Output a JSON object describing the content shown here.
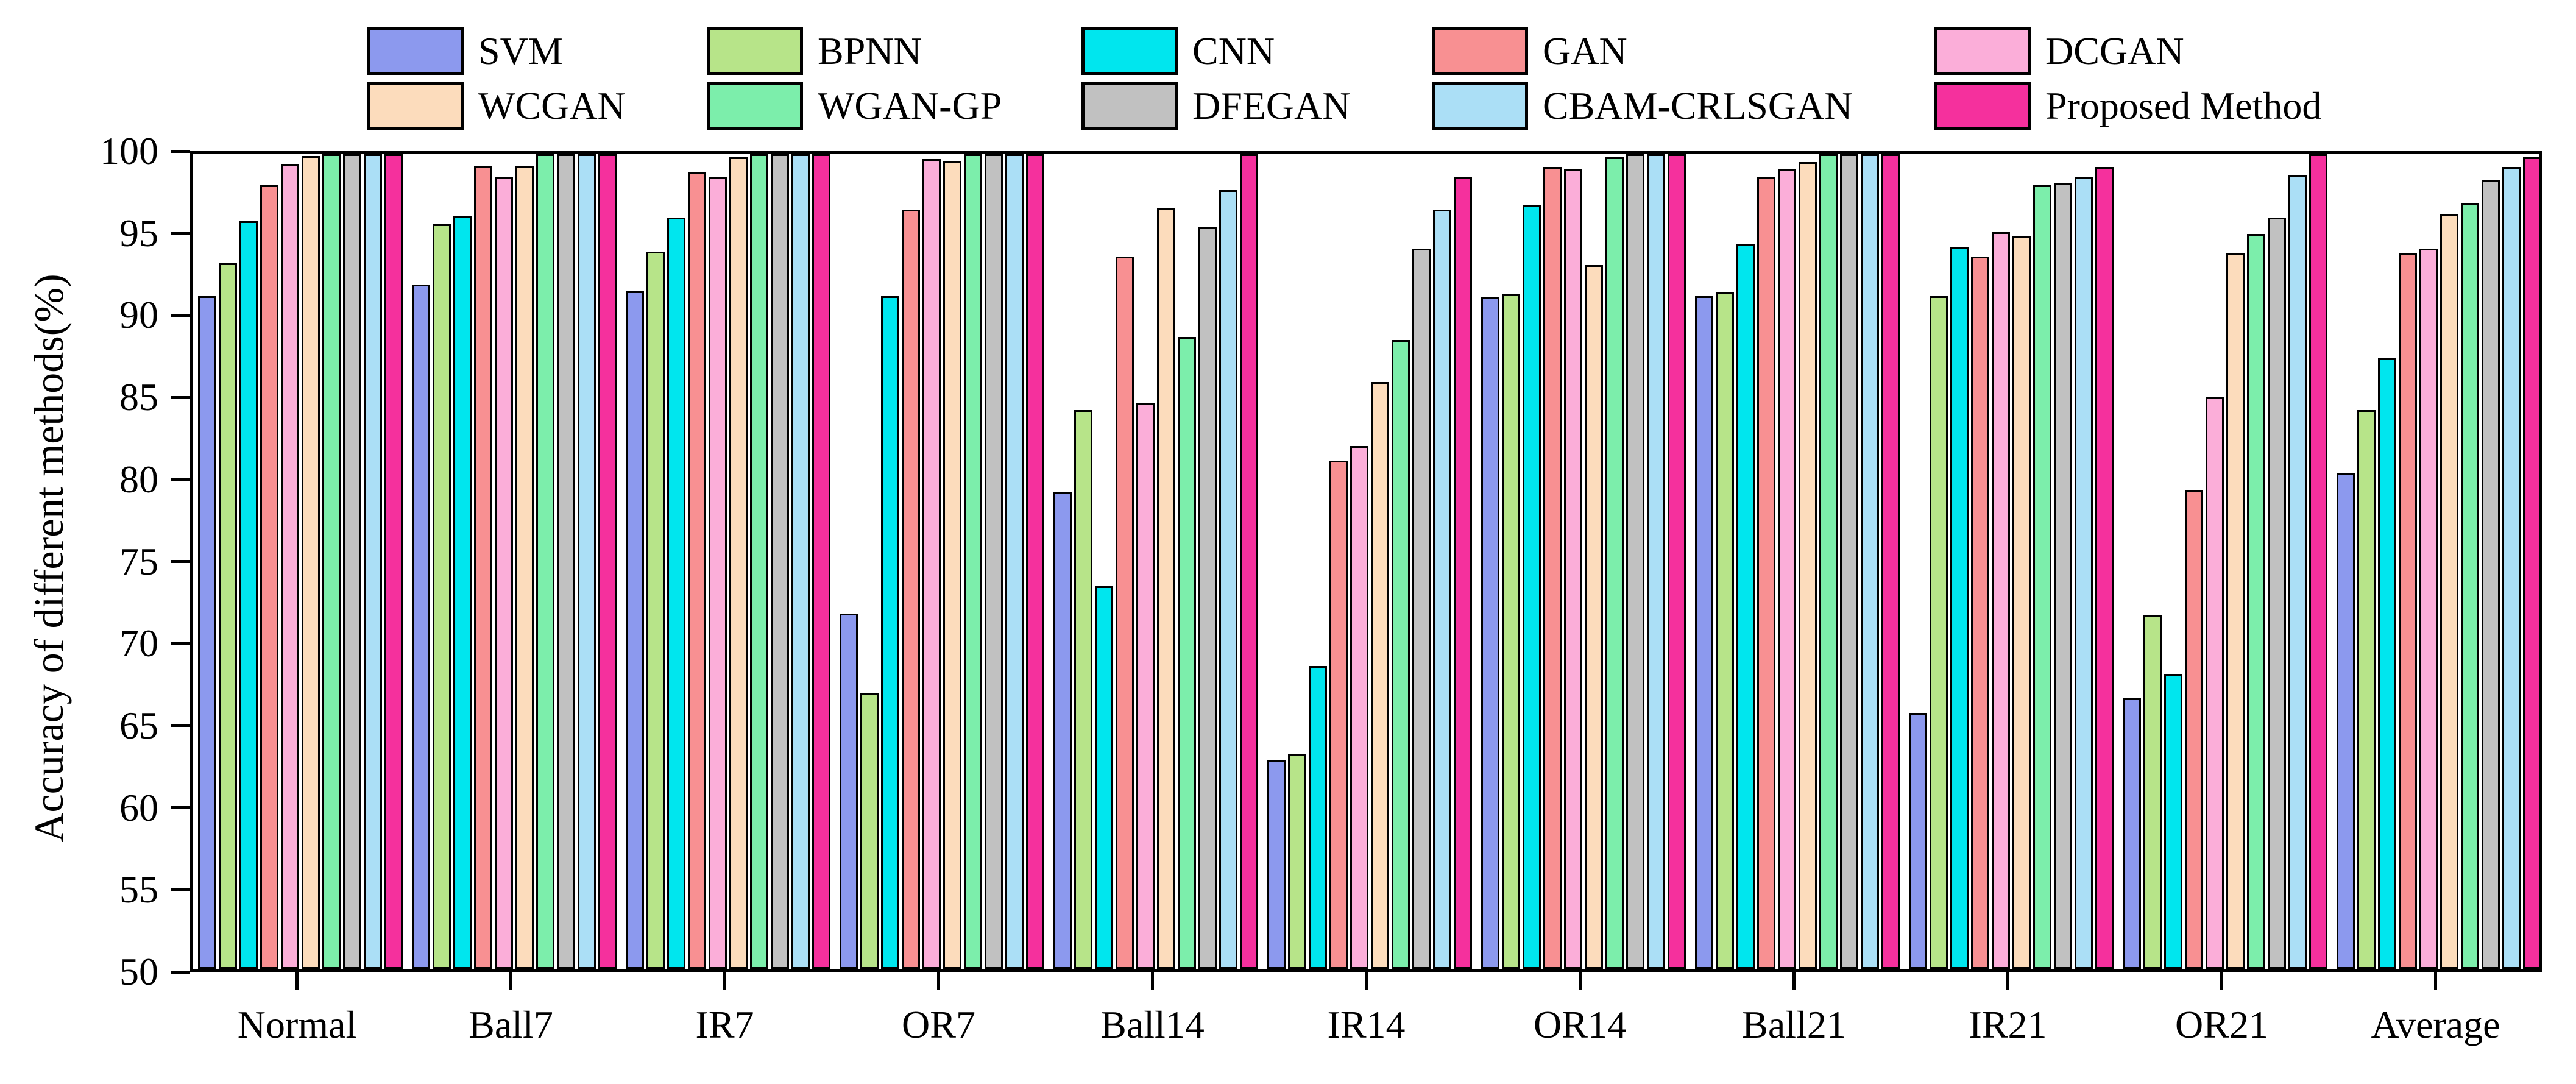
{
  "chart_data": {
    "type": "bar",
    "title": "",
    "xlabel": "",
    "ylabel": "Accuracy of different methods(%)",
    "ylim": [
      50,
      100
    ],
    "y_ticks": [
      100,
      95,
      90,
      85,
      80,
      75,
      70,
      65,
      60,
      55,
      50
    ],
    "grid": false,
    "legend_position": "top",
    "categories": [
      "Normal",
      "Ball7",
      "IR7",
      "OR7",
      "Ball14",
      "IR14",
      "OR14",
      "Ball21",
      "IR21",
      "OR21",
      "Average"
    ],
    "series": [
      {
        "name": "SVM",
        "color": "#8c99ee",
        "values": [
          91.3,
          92.0,
          91.6,
          71.8,
          79.3,
          62.8,
          91.2,
          91.3,
          65.7,
          66.6,
          80.4
        ]
      },
      {
        "name": "BPNN",
        "color": "#b7e489",
        "values": [
          93.3,
          95.7,
          94.0,
          66.9,
          84.3,
          63.2,
          91.4,
          91.5,
          91.3,
          71.7,
          84.3
        ]
      },
      {
        "name": "CNN",
        "color": "#00e6ee",
        "values": [
          95.9,
          96.2,
          96.1,
          91.3,
          73.5,
          68.6,
          96.9,
          94.5,
          94.3,
          68.1,
          87.5
        ]
      },
      {
        "name": "GAN",
        "color": "#f89092",
        "values": [
          98.1,
          99.3,
          98.9,
          96.6,
          93.7,
          81.2,
          99.2,
          98.6,
          93.7,
          79.4,
          93.9
        ]
      },
      {
        "name": "DCGAN",
        "color": "#fbaed9",
        "values": [
          99.4,
          98.6,
          98.6,
          99.7,
          84.7,
          82.1,
          99.1,
          99.1,
          95.2,
          85.1,
          94.2
        ]
      },
      {
        "name": "WCGAN",
        "color": "#fcdcbc",
        "values": [
          99.9,
          99.3,
          99.8,
          99.6,
          96.7,
          86.0,
          93.2,
          99.5,
          95.0,
          93.9,
          96.3
        ]
      },
      {
        "name": "WGAN-GP",
        "color": "#7ceeab",
        "values": [
          100,
          100,
          100,
          100,
          88.8,
          88.6,
          99.8,
          100,
          98.1,
          95.1,
          97.0
        ]
      },
      {
        "name": "DFEGAN",
        "color": "#c1c1c1",
        "values": [
          100,
          100,
          100,
          100,
          95.5,
          94.2,
          100,
          100,
          98.2,
          96.1,
          98.4
        ]
      },
      {
        "name": "CBAM-CRLSGAN",
        "color": "#abdff6",
        "values": [
          100,
          100,
          100,
          100,
          97.8,
          96.6,
          100,
          100,
          98.6,
          98.7,
          99.2
        ]
      },
      {
        "name": "Proposed Method",
        "color": "#f5309d",
        "values": [
          100,
          100,
          100,
          100,
          100,
          98.6,
          100,
          100,
          99.2,
          100,
          99.8
        ]
      }
    ]
  }
}
